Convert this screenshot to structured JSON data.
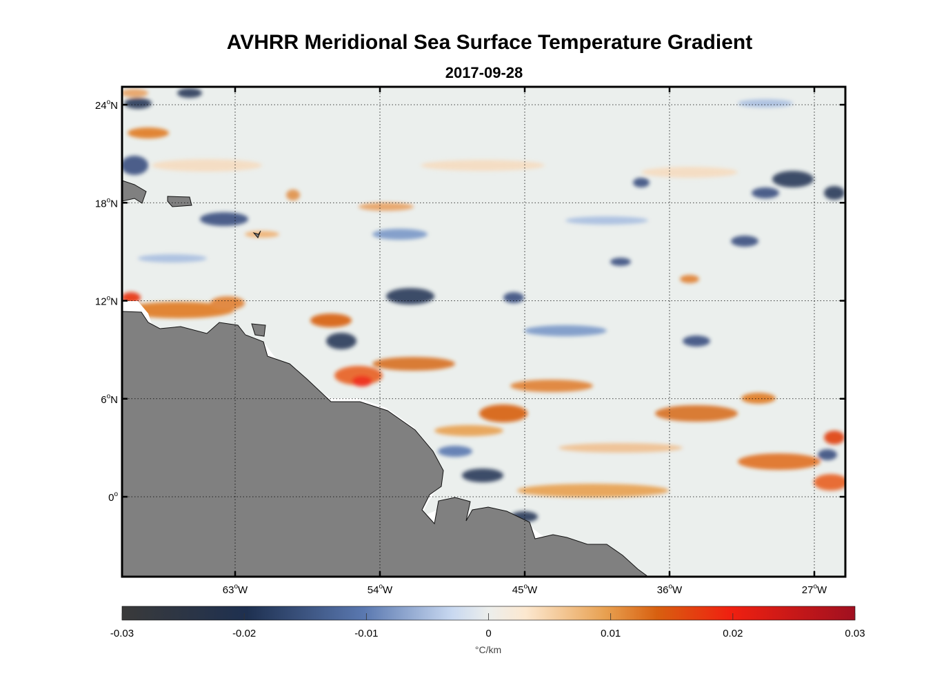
{
  "title": "AVHRR Meridional Sea Surface Temperature Gradient",
  "subtitle": "2017-09-28",
  "map": {
    "lat_ticks": [
      {
        "value": 24,
        "deg": "24",
        "hem": "N"
      },
      {
        "value": 18,
        "deg": "18",
        "hem": "N"
      },
      {
        "value": 12,
        "deg": "12",
        "hem": "N"
      },
      {
        "value": 6,
        "deg": "6",
        "hem": "N"
      },
      {
        "value": 0,
        "deg": "0",
        "hem": ""
      }
    ],
    "lon_ticks": [
      {
        "value": -63,
        "deg": "63",
        "hem": "W"
      },
      {
        "value": -54,
        "deg": "54",
        "hem": "W"
      },
      {
        "value": -45,
        "deg": "45",
        "hem": "W"
      },
      {
        "value": -36,
        "deg": "36",
        "hem": "W"
      },
      {
        "value": -27,
        "deg": "27",
        "hem": "W"
      }
    ],
    "land_color": "#808080"
  },
  "colorbar": {
    "ticks": [
      "-0.03",
      "-0.02",
      "-0.01",
      "0",
      "0.01",
      "0.02",
      "0.03"
    ],
    "units": "°C/km",
    "colors": [
      "#3a3a3a",
      "#1e3050",
      "#5a78b0",
      "#c8d8f0",
      "#eceeec",
      "#fce8d0",
      "#e8a050",
      "#d86010",
      "#f02010",
      "#a01020"
    ]
  }
}
